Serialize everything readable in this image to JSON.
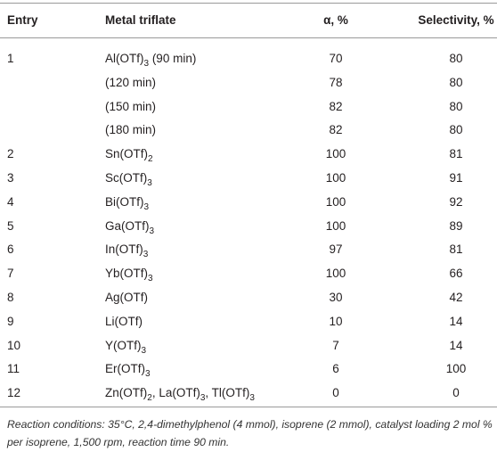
{
  "table": {
    "header": [
      "Entry",
      "Metal triflate",
      "α, %",
      "Selectivity, %"
    ],
    "rows": [
      {
        "entry": "1",
        "metal": [
          "Al(OTf)",
          "3",
          " (90 min)"
        ],
        "alpha": 70,
        "selectivity": 80
      },
      {
        "entry": null,
        "metal": [
          "(120 min)"
        ],
        "alpha": 78,
        "selectivity": 80
      },
      {
        "entry": null,
        "metal": [
          "(150 min)"
        ],
        "alpha": 82,
        "selectivity": 80
      },
      {
        "entry": null,
        "metal": [
          "(180 min)"
        ],
        "alpha": 82,
        "selectivity": 80
      },
      {
        "entry": "2",
        "metal": [
          "Sn(OTf)",
          "2"
        ],
        "alpha": 100,
        "selectivity": 81
      },
      {
        "entry": "3",
        "metal": [
          "Sc(OTf)",
          "3"
        ],
        "alpha": 100,
        "selectivity": 91
      },
      {
        "entry": "4",
        "metal": [
          "Bi(OTf)",
          "3"
        ],
        "alpha": 100,
        "selectivity": 92
      },
      {
        "entry": "5",
        "metal": [
          "Ga(OTf)",
          "3"
        ],
        "alpha": 100,
        "selectivity": 89
      },
      {
        "entry": "6",
        "metal": [
          "In(OTf)",
          "3"
        ],
        "alpha": 97,
        "selectivity": 81
      },
      {
        "entry": "7",
        "metal": [
          "Yb(OTf)",
          "3"
        ],
        "alpha": 100,
        "selectivity": 66
      },
      {
        "entry": "8",
        "metal": [
          "Ag(OTf)"
        ],
        "alpha": 30,
        "selectivity": 42
      },
      {
        "entry": "9",
        "metal": [
          "Li(OTf)"
        ],
        "alpha": 10,
        "selectivity": 14
      },
      {
        "entry": "10",
        "metal": [
          "Y(OTf)",
          "3"
        ],
        "alpha": 7,
        "selectivity": 14
      },
      {
        "entry": "11",
        "metal": [
          "Er(OTf)",
          "3"
        ],
        "alpha": 6,
        "selectivity": 100
      },
      {
        "entry": "12",
        "metal": [
          "Zn(OTf)",
          "2",
          ", La(OTf)",
          "3",
          ", Tl(OTf)",
          "3"
        ],
        "alpha": 0,
        "selectivity": 0
      }
    ],
    "footnote": "Reaction conditions: 35°C, 2,4-dimethylphenol (4 mmol), isoprene (2 mmol), catalyst loading 2 mol % per isoprene, 1,500 rpm, reaction time 90 min."
  }
}
